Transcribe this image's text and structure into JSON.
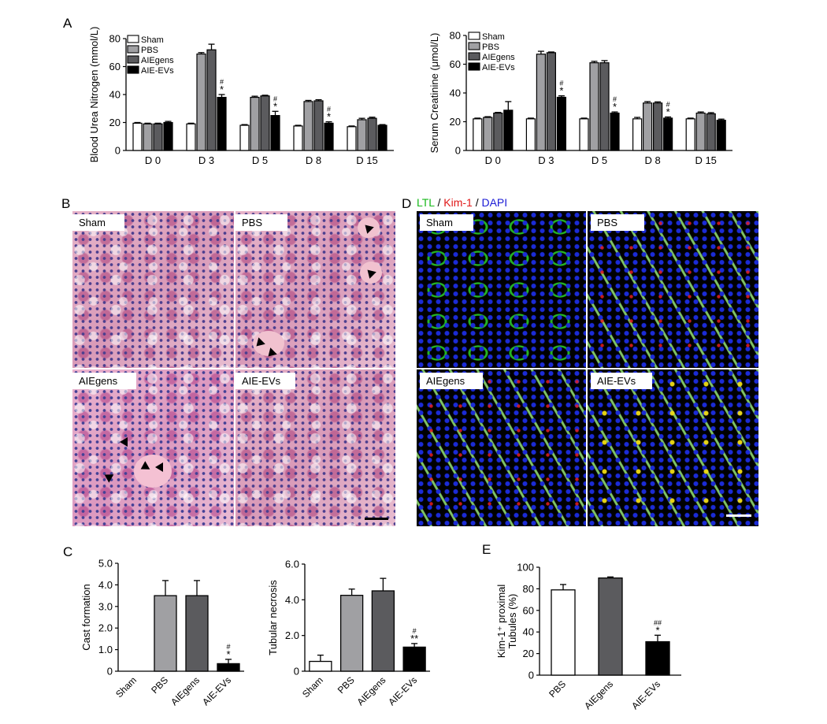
{
  "panels": {
    "A": "A",
    "B": "B",
    "C": "C",
    "D": "D",
    "E": "E"
  },
  "legend": [
    "Sham",
    "PBS",
    "AIEgens",
    "AIE-EVs"
  ],
  "chart_data": [
    {
      "id": "bun",
      "type": "bar",
      "ylabel": "Blood Urea Nitrogen (mmol/L)",
      "ylim": [
        0,
        80
      ],
      "yticks": [
        "0",
        "20",
        "40",
        "60",
        "80"
      ],
      "categories": [
        "D 0",
        "D 3",
        "D 5",
        "D 8",
        "D 15"
      ],
      "series": [
        {
          "name": "Sham",
          "values": [
            19.5,
            19,
            18,
            17.5,
            17
          ],
          "errors": [
            0.5,
            0.5,
            0.5,
            0.5,
            0.5
          ]
        },
        {
          "name": "PBS",
          "values": [
            19,
            69,
            38,
            35,
            22
          ],
          "errors": [
            0.5,
            1,
            0.8,
            0.8,
            1
          ]
        },
        {
          "name": "AIEgens",
          "values": [
            19,
            72,
            39,
            35.5,
            23
          ],
          "errors": [
            0.5,
            4,
            0.5,
            0.8,
            0.8
          ]
        },
        {
          "name": "AIE-EVs",
          "values": [
            20,
            38,
            25,
            19.5,
            18
          ],
          "errors": [
            0.8,
            2,
            3,
            1,
            0.5
          ]
        }
      ],
      "marks": [
        "",
        "#*",
        "#*",
        "#*",
        ""
      ]
    },
    {
      "id": "scr",
      "type": "bar",
      "ylabel": "Serum Creatinine (μmol/L)",
      "ylim": [
        0,
        80
      ],
      "yticks": [
        "0",
        "20",
        "40",
        "60",
        "80"
      ],
      "categories": [
        "D 0",
        "D 3",
        "D 5",
        "D 8",
        "D 15"
      ],
      "series": [
        {
          "name": "Sham",
          "values": [
            22,
            22,
            22,
            22,
            22
          ],
          "errors": [
            0.5,
            0.5,
            0.5,
            1,
            0.5
          ]
        },
        {
          "name": "PBS",
          "values": [
            23,
            67,
            61,
            33,
            26
          ],
          "errors": [
            0.5,
            2,
            1,
            1,
            0.8
          ]
        },
        {
          "name": "AIEgens",
          "values": [
            26,
            68,
            61,
            33,
            25.5
          ],
          "errors": [
            0.5,
            0.5,
            1.5,
            0.8,
            0.8
          ]
        },
        {
          "name": "AIE-EVs",
          "values": [
            28,
            37,
            26,
            22.5,
            21
          ],
          "errors": [
            6,
            1,
            0.8,
            0.8,
            0.8
          ]
        }
      ],
      "marks": [
        "",
        "#*",
        "#*",
        "#*",
        ""
      ]
    },
    {
      "id": "cast",
      "type": "bar",
      "ylabel": "Cast formation",
      "ylim": [
        0,
        5
      ],
      "yticks": [
        "0",
        "1.0",
        "2.0",
        "3.0",
        "4.0",
        "5.0"
      ],
      "categories": [
        "Sham",
        "PBS",
        "AIEgens",
        "AIE-EVs"
      ],
      "values": [
        0,
        3.5,
        3.5,
        0.35
      ],
      "errors": [
        0,
        0.7,
        0.7,
        0.2
      ],
      "marks": [
        "",
        "",
        "",
        "#*"
      ]
    },
    {
      "id": "necrosis",
      "type": "bar",
      "ylabel": "Tubular necrosis",
      "ylim": [
        0,
        6
      ],
      "yticks": [
        "0",
        "2.0",
        "4.0",
        "6.0"
      ],
      "categories": [
        "Sham",
        "PBS",
        "AIEgens",
        "AIE-EVs"
      ],
      "values": [
        0.55,
        4.25,
        4.5,
        1.35
      ],
      "errors": [
        0.35,
        0.35,
        0.7,
        0.2
      ],
      "marks": [
        "",
        "",
        "",
        "#**"
      ]
    },
    {
      "id": "kim",
      "type": "bar",
      "ylabel_line1": "Kim-1⁺ proximal",
      "ylabel_line2": "Tubules (%)",
      "ylim": [
        0,
        100
      ],
      "yticks": [
        "0",
        "20",
        "40",
        "60",
        "80",
        "100"
      ],
      "categories": [
        "PBS",
        "AIEgens",
        "AIE-EVs"
      ],
      "values": [
        79,
        90,
        31
      ],
      "errors": [
        5,
        1,
        6
      ],
      "marks": [
        "",
        "",
        "##*"
      ]
    }
  ],
  "histology": {
    "B_labels": [
      "Sham",
      "PBS",
      "AIEgens",
      "AIE-EVs"
    ],
    "D_title_ltl": "LTL",
    "D_sep1": " / ",
    "D_title_kim": "Kim-1",
    "D_sep2": " / ",
    "D_title_dapi": "DAPI",
    "D_labels": [
      "Sham",
      "PBS",
      "AIEgens",
      "AIE-EVs"
    ],
    "colors": {
      "ltl": "#17b91a",
      "kim": "#e01919",
      "dapi": "#1a1ad6"
    }
  },
  "colors": {
    "sham": "#ffffff",
    "pbs": "#a0a0a3",
    "aiegens": "#5b5b5e",
    "aieevs": "#000000"
  }
}
